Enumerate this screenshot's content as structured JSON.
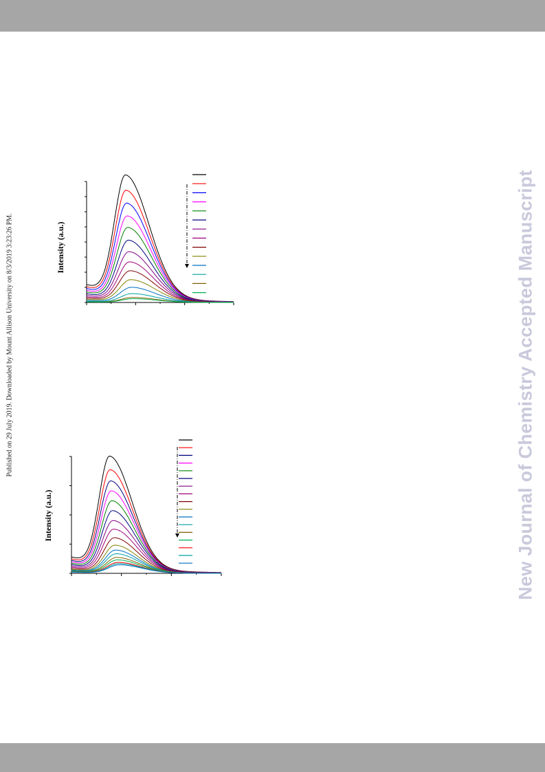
{
  "page": {
    "side_note": "Published on 29 July 2019. Downloaded by Mount Allison University on 8/3/2019 3:23:26 PM.",
    "watermark": "New Journal of Chemistry Accepted Manuscript",
    "colors": {
      "header_bar": "#a6a6a6",
      "footer_bar": "#a6a6a6",
      "watermark": "#c9c9dc",
      "text": "#222222"
    }
  },
  "chart_data": [
    {
      "type": "line",
      "ylabel": "Intensity (a.u.)",
      "xlabel": "",
      "grid": false,
      "legend_placement": "top-right",
      "trend_arrow": "down",
      "x": [
        0,
        0.1,
        0.2,
        0.3,
        0.4,
        0.5,
        0.6,
        0.7,
        0.8,
        0.9,
        1.0
      ],
      "xlim": [
        0,
        1
      ],
      "ylim": [
        0,
        1
      ],
      "series": [
        {
          "color": "#000000",
          "peak": 1.0
        },
        {
          "color": "#ff0000",
          "peak": 0.88
        },
        {
          "color": "#0000ff",
          "peak": 0.78
        },
        {
          "color": "#ff00ff",
          "peak": 0.68
        },
        {
          "color": "#008000",
          "peak": 0.59
        },
        {
          "color": "#000080",
          "peak": 0.49
        },
        {
          "color": "#800080",
          "peak": 0.4
        },
        {
          "color": "#a0007a",
          "peak": 0.32
        },
        {
          "color": "#800000",
          "peak": 0.25
        },
        {
          "color": "#808000",
          "peak": 0.18
        },
        {
          "color": "#0070c0",
          "peak": 0.12
        },
        {
          "color": "#00a0a0",
          "peak": 0.07
        },
        {
          "color": "#806000",
          "peak": 0.04
        },
        {
          "color": "#00b050",
          "peak": 0.03
        }
      ]
    },
    {
      "type": "line",
      "ylabel": "Intensity (a.u.)",
      "xlabel": "",
      "grid": false,
      "legend_placement": "top-right",
      "trend_arrow": "down",
      "x": [
        0,
        0.1,
        0.2,
        0.3,
        0.4,
        0.5,
        0.6,
        0.7,
        0.8,
        0.9,
        1.0
      ],
      "xlim": [
        0,
        1
      ],
      "ylim": [
        0,
        1
      ],
      "series": [
        {
          "color": "#000000",
          "peak": 0.95
        },
        {
          "color": "#ff0000",
          "peak": 0.84
        },
        {
          "color": "#000080",
          "peak": 0.75
        },
        {
          "color": "#ff00ff",
          "peak": 0.67
        },
        {
          "color": "#008000",
          "peak": 0.59
        },
        {
          "color": "#000080",
          "peak": 0.51
        },
        {
          "color": "#800080",
          "peak": 0.43
        },
        {
          "color": "#a0007a",
          "peak": 0.36
        },
        {
          "color": "#800000",
          "peak": 0.29
        },
        {
          "color": "#808000",
          "peak": 0.23
        },
        {
          "color": "#0070c0",
          "peak": 0.19
        },
        {
          "color": "#00a0a0",
          "peak": 0.16
        },
        {
          "color": "#806000",
          "peak": 0.13
        },
        {
          "color": "#00b050",
          "peak": 0.11
        },
        {
          "color": "#ff0000",
          "peak": 0.09
        },
        {
          "color": "#00a0a0",
          "peak": 0.08
        },
        {
          "color": "#0070c0",
          "peak": 0.07
        }
      ]
    }
  ]
}
